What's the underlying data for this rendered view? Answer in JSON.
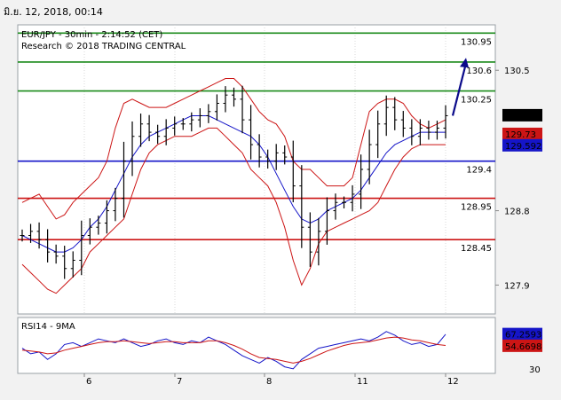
{
  "timestamp": "มิ.ย. 12, 2018, 00:14",
  "colors": {
    "resistance": "#1a8a1a",
    "pivot": "#1515c8",
    "support": "#cc1515",
    "price_tag_bg": "#1515c8",
    "bands": "#cc1515",
    "ma": "#1515c8",
    "price": "#000000",
    "arrow": "#0a0a8a",
    "rsi": "#1515c8",
    "rsi_ma": "#cc1515",
    "current_tag_bg": "#000000"
  },
  "chart_data": [
    {
      "type": "line",
      "title": "EUR/JPY - 30min - 2:14:52 (CET)",
      "subtitle": "Research © 2018 TRADING CENTRAL",
      "x_ticks": [
        "6",
        "7",
        "8",
        "11",
        "12"
      ],
      "y_ticks": [
        "130.5",
        "128.8",
        "127.9"
      ],
      "ylim": [
        127.55,
        131.05
      ],
      "levels": [
        {
          "label": "130.95",
          "value": 130.95,
          "kind": "resistance"
        },
        {
          "label": "130.6",
          "value": 130.6,
          "kind": "resistance"
        },
        {
          "label": "130.25",
          "value": 130.25,
          "kind": "resistance"
        },
        {
          "label": "129.4",
          "value": 129.4,
          "kind": "pivot"
        },
        {
          "label": "128.95",
          "value": 128.95,
          "kind": "support"
        },
        {
          "label": "128.45",
          "value": 128.45,
          "kind": "support"
        }
      ],
      "price_tags": [
        {
          "label": "129.956",
          "value": 129.956,
          "kind": "current"
        },
        {
          "label": "129.73",
          "value": 129.73,
          "kind": "support"
        },
        {
          "label": "129.592",
          "value": 129.592,
          "kind": "pivot"
        }
      ],
      "series": [
        {
          "type": "ohlc",
          "close": [
            128.5,
            128.55,
            128.45,
            128.3,
            128.25,
            128.1,
            128.2,
            128.5,
            128.6,
            128.65,
            128.8,
            128.95,
            129.4,
            129.7,
            129.85,
            129.75,
            129.7,
            129.8,
            129.85,
            129.85,
            129.9,
            129.95,
            130.0,
            130.1,
            130.2,
            130.15,
            129.9,
            129.6,
            129.45,
            129.4,
            129.5,
            129.45,
            129.1,
            128.6,
            128.3,
            128.55,
            128.8,
            128.9,
            128.9,
            129.0,
            129.3,
            129.6,
            129.85,
            130.05,
            129.9,
            129.8,
            129.7,
            129.8,
            129.75,
            129.8,
            129.95
          ]
        },
        {
          "name": "Bollinger upper",
          "type": "line",
          "values": [
            128.9,
            128.95,
            129.0,
            128.85,
            128.7,
            128.75,
            128.9,
            129.0,
            129.1,
            129.2,
            129.4,
            129.8,
            130.1,
            130.15,
            130.1,
            130.05,
            130.05,
            130.05,
            130.1,
            130.15,
            130.2,
            130.25,
            130.3,
            130.35,
            130.4,
            130.4,
            130.3,
            130.15,
            130.0,
            129.9,
            129.85,
            129.7,
            129.4,
            129.3,
            129.3,
            129.2,
            129.1,
            129.1,
            129.1,
            129.2,
            129.6,
            130.0,
            130.1,
            130.15,
            130.15,
            130.1,
            129.95,
            129.85,
            129.8,
            129.85,
            129.9
          ]
        },
        {
          "name": "Bollinger lower",
          "type": "line",
          "values": [
            128.15,
            128.05,
            127.95,
            127.85,
            127.8,
            127.9,
            128.0,
            128.1,
            128.3,
            128.4,
            128.5,
            128.6,
            128.7,
            129.0,
            129.3,
            129.5,
            129.6,
            129.65,
            129.7,
            129.7,
            129.7,
            129.75,
            129.8,
            129.8,
            129.7,
            129.6,
            129.5,
            129.3,
            129.2,
            129.1,
            128.9,
            128.6,
            128.2,
            127.9,
            128.1,
            128.4,
            128.55,
            128.6,
            128.65,
            128.7,
            128.75,
            128.8,
            128.9,
            129.1,
            129.3,
            129.45,
            129.55,
            129.6,
            129.6,
            129.6,
            129.6
          ]
        },
        {
          "name": "MA",
          "type": "line",
          "values": [
            128.5,
            128.45,
            128.4,
            128.35,
            128.3,
            128.3,
            128.35,
            128.45,
            128.6,
            128.7,
            128.85,
            129.05,
            129.25,
            129.45,
            129.6,
            129.7,
            129.75,
            129.8,
            129.85,
            129.9,
            129.95,
            129.95,
            129.95,
            129.9,
            129.85,
            129.8,
            129.75,
            129.7,
            129.6,
            129.45,
            129.25,
            129.05,
            128.85,
            128.7,
            128.65,
            128.7,
            128.8,
            128.85,
            128.9,
            128.95,
            129.05,
            129.2,
            129.35,
            129.5,
            129.6,
            129.65,
            129.7,
            129.75,
            129.75,
            129.75,
            129.75
          ]
        },
        {
          "name": "Projection",
          "type": "arrow",
          "from": 129.95,
          "to": 130.65
        }
      ]
    },
    {
      "type": "line",
      "title": "RSI14 - 9MA",
      "y_ticks": [
        "30"
      ],
      "ylim": [
        25,
        85
      ],
      "value_tags": [
        {
          "label": "67.2593",
          "value": 67.2593,
          "kind": "rsi"
        },
        {
          "label": "54.6698",
          "value": 54.6698,
          "kind": "rsi_ma"
        }
      ],
      "series": [
        {
          "name": "RSI14",
          "values": [
            52,
            46,
            48,
            40,
            46,
            56,
            58,
            54,
            58,
            62,
            60,
            58,
            62,
            58,
            54,
            56,
            60,
            62,
            58,
            56,
            60,
            58,
            64,
            60,
            56,
            50,
            44,
            40,
            36,
            42,
            38,
            32,
            30,
            40,
            46,
            52,
            54,
            56,
            58,
            60,
            62,
            60,
            64,
            70,
            66,
            60,
            56,
            58,
            54,
            56,
            67
          ]
        },
        {
          "name": "9MA",
          "values": [
            50,
            49,
            48,
            46,
            47,
            50,
            52,
            54,
            56,
            58,
            59,
            59,
            60,
            59,
            58,
            57,
            58,
            59,
            59,
            58,
            58,
            58,
            60,
            60,
            58,
            55,
            51,
            46,
            42,
            41,
            40,
            38,
            36,
            38,
            41,
            45,
            49,
            52,
            55,
            57,
            58,
            59,
            61,
            63,
            64,
            63,
            61,
            60,
            58,
            56,
            55
          ]
        }
      ]
    }
  ]
}
